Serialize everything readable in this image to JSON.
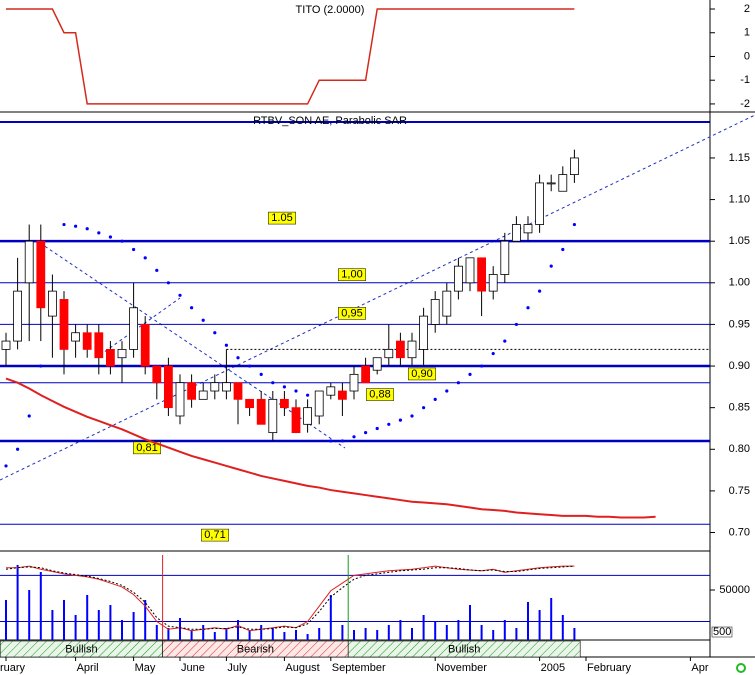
{
  "chart_data": [
    {
      "type": "line",
      "title": "TITO (2.0000)",
      "color": "#d42a1e",
      "values": [
        2,
        2,
        2,
        2,
        2,
        1,
        1,
        -2,
        -2,
        -2,
        -2,
        -2,
        -2,
        -2,
        -2,
        -2,
        -2,
        -2,
        -2,
        -2,
        -2,
        -2,
        -2,
        -2,
        -2,
        -2,
        -2,
        -1,
        -1,
        -1,
        -1,
        -1,
        2,
        2,
        2,
        2,
        2,
        2,
        2,
        2,
        2,
        2,
        2,
        2,
        2,
        2,
        2,
        2,
        2,
        2
      ],
      "ylim": [
        -2.34,
        2.38
      ],
      "yticks": [
        2,
        1,
        0,
        -1,
        -2
      ]
    },
    {
      "type": "candlestick",
      "title": "RTBV_SON AE, Parabolic SAR",
      "up_color": "#ffffff",
      "down_color": "#ff0000",
      "open": [
        0.92,
        0.93,
        1.0,
        1.05,
        0.96,
        0.98,
        0.93,
        0.94,
        0.94,
        0.92,
        0.91,
        0.92,
        0.95,
        0.9,
        0.9,
        0.84,
        0.88,
        0.86,
        0.87,
        0.87,
        0.88,
        0.86,
        0.86,
        0.82,
        0.86,
        0.85,
        0.83,
        0.84,
        0.865,
        0.87,
        0.87,
        0.9,
        0.895,
        0.91,
        0.93,
        0.91,
        0.92,
        0.95,
        0.96,
        0.99,
        1.0,
        1.03,
        0.99,
        1.01,
        1.05,
        1.06,
        1.07,
        1.12,
        1.11,
        1.13
      ],
      "high": [
        0.94,
        1.03,
        1.07,
        1.07,
        1.01,
        0.99,
        0.95,
        0.95,
        0.95,
        0.93,
        0.93,
        1.0,
        0.96,
        0.9,
        0.91,
        0.89,
        0.89,
        0.88,
        0.89,
        0.92,
        0.88,
        0.86,
        0.87,
        0.87,
        0.87,
        0.86,
        0.86,
        0.87,
        0.88,
        0.88,
        0.9,
        0.91,
        0.91,
        0.95,
        0.94,
        0.94,
        0.97,
        0.99,
        1.0,
        1.03,
        1.03,
        1.03,
        1.02,
        1.06,
        1.08,
        1.08,
        1.13,
        1.13,
        1.14,
        1.16
      ],
      "low": [
        0.9,
        0.92,
        0.93,
        0.93,
        0.91,
        0.89,
        0.91,
        0.91,
        0.89,
        0.89,
        0.88,
        0.91,
        0.89,
        0.86,
        0.84,
        0.83,
        0.85,
        0.86,
        0.86,
        0.86,
        0.83,
        0.84,
        0.83,
        0.81,
        0.84,
        0.82,
        0.82,
        0.83,
        0.86,
        0.84,
        0.86,
        0.88,
        0.89,
        0.9,
        0.9,
        0.9,
        0.9,
        0.94,
        0.95,
        0.98,
        0.99,
        0.96,
        0.98,
        1.0,
        1.05,
        1.05,
        1.06,
        1.11,
        1.11,
        1.12
      ],
      "close": [
        0.93,
        0.99,
        1.05,
        0.97,
        0.99,
        0.92,
        0.94,
        0.92,
        0.91,
        0.9,
        0.92,
        0.97,
        0.9,
        0.88,
        0.85,
        0.88,
        0.86,
        0.87,
        0.88,
        0.88,
        0.86,
        0.85,
        0.83,
        0.86,
        0.85,
        0.82,
        0.85,
        0.87,
        0.875,
        0.86,
        0.89,
        0.88,
        0.91,
        0.92,
        0.91,
        0.93,
        0.96,
        0.98,
        0.99,
        1.02,
        1.03,
        0.99,
        1.01,
        1.05,
        1.07,
        1.07,
        1.12,
        1.12,
        1.13,
        1.15
      ],
      "sar": {
        "color": "#0000ff",
        "values": [
          0.78,
          0.8,
          0.84,
          0.9,
          null,
          1.07,
          1.068,
          1.065,
          1.06,
          1.055,
          1.05,
          1.04,
          1.03,
          1.015,
          1.0,
          0.985,
          0.97,
          0.955,
          0.94,
          0.925,
          0.91,
          0.9,
          0.89,
          0.88,
          0.875,
          0.87,
          0.865,
          null,
          0.81,
          0.81,
          0.815,
          0.82,
          0.825,
          0.83,
          0.835,
          0.84,
          0.85,
          0.86,
          0.87,
          0.88,
          0.89,
          0.9,
          0.915,
          0.93,
          0.95,
          0.97,
          0.99,
          1.02,
          1.04,
          1.07
        ]
      },
      "ma": {
        "color": "#e02020",
        "values": [
          0.885,
          0.88,
          0.873,
          0.865,
          0.858,
          0.851,
          0.845,
          0.839,
          0.834,
          0.829,
          0.824,
          0.818,
          0.812,
          0.807,
          0.802,
          0.797,
          0.792,
          0.788,
          0.784,
          0.78,
          0.776,
          0.772,
          0.768,
          0.765,
          0.762,
          0.759,
          0.756,
          0.754,
          0.751,
          0.749,
          0.747,
          0.745,
          0.743,
          0.741,
          0.739,
          0.737,
          0.736,
          0.735,
          0.734,
          0.732,
          0.73,
          0.728,
          0.727,
          0.726,
          0.724,
          0.723,
          0.722,
          0.721,
          0.72,
          0.72,
          0.72,
          0.719,
          0.719,
          0.718,
          0.718,
          0.718,
          0.719
        ]
      },
      "levels": [
        {
          "value": 1.05,
          "label": "1.05",
          "style": "thick"
        },
        {
          "value": 1.0,
          "label": "1,00",
          "style": "thin"
        },
        {
          "value": 0.95,
          "label": "0,95",
          "style": "thin"
        },
        {
          "value": 0.92,
          "style": "dashed",
          "from": 19
        },
        {
          "value": 0.9,
          "label": "0,90",
          "style": "thick"
        },
        {
          "value": 0.88,
          "label": "0,88",
          "style": "thin"
        },
        {
          "value": 0.81,
          "label": "0,81",
          "style": "thick"
        },
        {
          "value": 0.71,
          "label": "0,71",
          "style": "thin"
        }
      ],
      "ylim": [
        0.679,
        1.204
      ],
      "yticks": [
        {
          "value": 0.7,
          "label": "0.70"
        },
        0.75,
        {
          "value": 0.8,
          "label": "0.80"
        },
        0.85,
        {
          "value": 0.9,
          "label": "0.90"
        },
        0.95,
        {
          "value": 1.0,
          "label": "1.00"
        },
        1.05,
        {
          "value": 1.1,
          "label": "1.10"
        },
        1.15
      ]
    },
    {
      "type": "bar",
      "color": "#0000ff",
      "values": [
        40000,
        75000,
        50000,
        68000,
        30000,
        40000,
        25000,
        45000,
        30000,
        35000,
        20000,
        28000,
        40000,
        15000,
        12000,
        22000,
        10000,
        15000,
        8000,
        12000,
        20000,
        10000,
        15000,
        12000,
        8000,
        10000,
        6000,
        12000,
        45000,
        15000,
        10000,
        12000,
        10000,
        15000,
        20000,
        12000,
        25000,
        18000,
        15000,
        20000,
        35000,
        15000,
        10000,
        20000,
        12000,
        38000,
        30000,
        42000,
        25000,
        12000
      ],
      "ylim": [
        0,
        90000
      ],
      "yticks": [
        50000
      ],
      "clipped_label": "500",
      "y2lim": [
        -4,
        113
      ],
      "y2levels": [
        80,
        20
      ],
      "series": [
        {
          "color": "#e02020",
          "axis": "y2",
          "values": [
            90,
            90,
            92,
            88,
            85,
            82,
            80,
            78,
            75,
            70,
            65,
            55,
            40,
            20,
            10,
            12,
            8,
            10,
            12,
            10,
            15,
            8,
            10,
            12,
            14,
            12,
            20,
            40,
            60,
            70,
            80,
            82,
            84,
            86,
            87,
            88,
            90,
            92,
            90,
            88,
            87,
            86,
            88,
            84,
            86,
            88,
            90,
            91,
            92,
            92
          ]
        },
        {
          "color": "#000000",
          "axis": "y2",
          "dashed": true,
          "values": [
            88,
            90,
            91,
            90,
            86,
            83,
            81,
            79,
            76,
            72,
            67,
            58,
            45,
            25,
            14,
            12,
            10,
            10,
            11,
            11,
            13,
            10,
            10,
            11,
            13,
            12,
            17,
            33,
            52,
            64,
            75,
            80,
            82,
            84,
            86,
            87,
            88,
            90,
            90,
            89,
            87,
            86,
            87,
            85,
            85,
            87,
            89,
            90,
            91,
            92
          ]
        }
      ]
    },
    {
      "type": "signals",
      "categories": [
        "ruary",
        null,
        null,
        null,
        null,
        null,
        "April",
        null,
        null,
        null,
        null,
        "May",
        null,
        null,
        null,
        "June",
        null,
        null,
        null,
        "July",
        null,
        null,
        null,
        null,
        "August",
        null,
        null,
        null,
        "September",
        null,
        null,
        null,
        null,
        null,
        null,
        null,
        null,
        "November",
        null,
        null,
        null,
        null,
        null,
        null,
        null,
        null,
        "2005",
        null,
        null,
        null,
        "February",
        null,
        null,
        null,
        null,
        null,
        null,
        null,
        null,
        "Apr"
      ],
      "signals": [
        {
          "label": "Bullish",
          "from": 0,
          "to": 13,
          "color": "#1a9a1a"
        },
        {
          "label": "Bearish",
          "from": 14,
          "to": 29,
          "color": "#e02020"
        },
        {
          "label": "Bullish",
          "from": 30,
          "to": 49,
          "color": "#1a9a1a"
        }
      ]
    }
  ]
}
